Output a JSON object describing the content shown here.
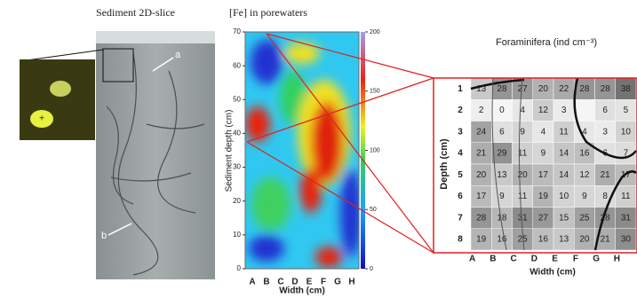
{
  "panels": {
    "slice": {
      "title": "Sediment 2D-slice",
      "labels": [
        "a",
        "b"
      ]
    },
    "iron": {
      "title": "[Fe] in porewaters",
      "y_label": "Sediment depth (cm)",
      "x_label": "Width (cm)",
      "columns": [
        "A",
        "B",
        "C",
        "D",
        "E",
        "F",
        "G",
        "H"
      ],
      "yticks": [
        0,
        10,
        20,
        30,
        40,
        50,
        60,
        70
      ],
      "ylim": [
        0,
        70
      ],
      "colorbar_ticks": [
        0,
        50,
        100,
        150,
        200
      ],
      "colorbar_lim": [
        0,
        200
      ]
    },
    "foraminifera": {
      "title": "Foraminifera (ind cm⁻³)",
      "y_label": "Depth (cm)",
      "x_label": "Width (cm)",
      "columns": [
        "A",
        "B",
        "C",
        "D",
        "E",
        "F",
        "G",
        "H"
      ],
      "rows": [
        "1",
        "2",
        "3",
        "4",
        "5",
        "6",
        "7",
        "8"
      ],
      "cells": [
        [
          13,
          28,
          27,
          20,
          22,
          28,
          28,
          38
        ],
        [
          2,
          0,
          4,
          12,
          3,
          null,
          6,
          5
        ],
        [
          24,
          6,
          9,
          4,
          11,
          4,
          3,
          10
        ],
        [
          21,
          29,
          11,
          9,
          14,
          16,
          6,
          7
        ],
        [
          20,
          13,
          20,
          17,
          14,
          12,
          21,
          17
        ],
        [
          17,
          9,
          11,
          19,
          10,
          9,
          8,
          11
        ],
        [
          28,
          18,
          31,
          27,
          15,
          25,
          28,
          31
        ],
        [
          19,
          16,
          25,
          16,
          13,
          20,
          21,
          30
        ]
      ]
    }
  }
}
